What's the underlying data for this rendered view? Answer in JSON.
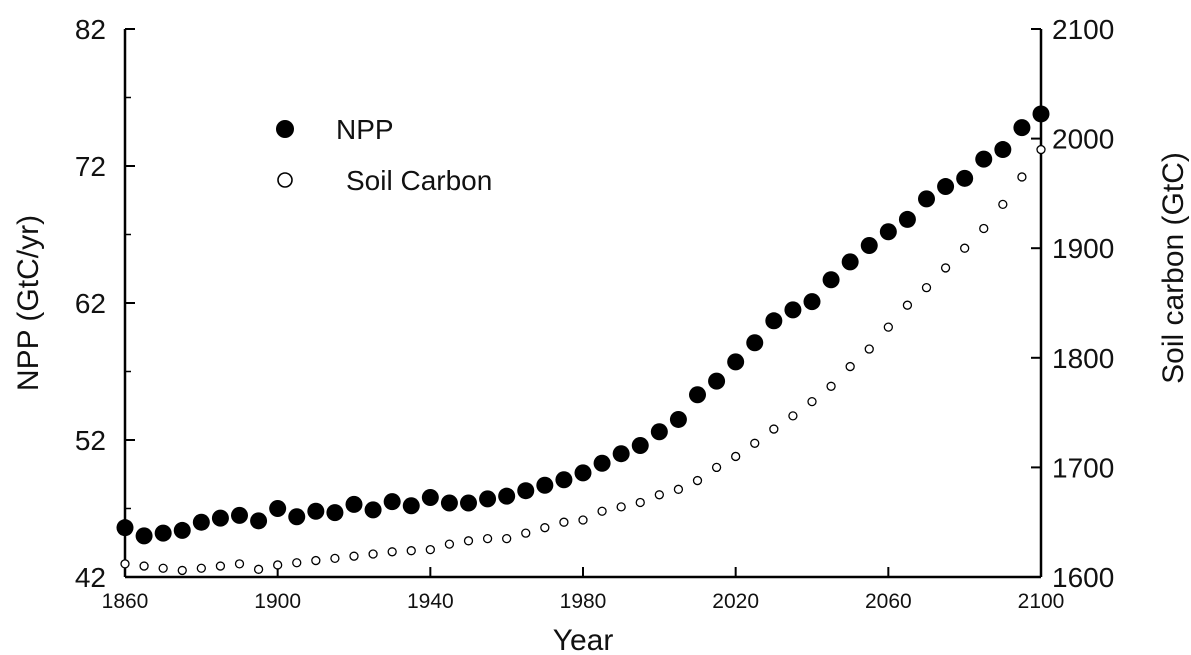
{
  "chart_data": {
    "type": "scatter",
    "title": "",
    "xlabel": "Year",
    "ylabel": "NPP (GtC/yr)",
    "ylabel_right": "Soil carbon (GtC)",
    "xlim": [
      1860,
      2100
    ],
    "ylim": [
      42,
      82
    ],
    "ylim_right": [
      1600,
      2100
    ],
    "x_ticks": [
      1860,
      1900,
      1940,
      1980,
      2020,
      2060,
      2100
    ],
    "y_ticks": [
      42,
      52,
      62,
      72,
      82
    ],
    "y_ticks_right": [
      1600,
      1700,
      1800,
      1900,
      2000,
      2100
    ],
    "grid": false,
    "legend_position": "top-left",
    "series": [
      {
        "name": "NPP",
        "axis": "left",
        "marker": "filled-circle",
        "color": "#000000",
        "x": [
          1860,
          1865,
          1870,
          1875,
          1880,
          1885,
          1890,
          1895,
          1900,
          1905,
          1910,
          1915,
          1920,
          1925,
          1930,
          1935,
          1940,
          1945,
          1950,
          1955,
          1960,
          1965,
          1970,
          1975,
          1980,
          1985,
          1990,
          1995,
          2000,
          2005,
          2010,
          2015,
          2020,
          2025,
          2030,
          2035,
          2040,
          2045,
          2050,
          2055,
          2060,
          2065,
          2070,
          2075,
          2080,
          2085,
          2090,
          2095,
          2100
        ],
        "values": [
          45.6,
          45.0,
          45.2,
          45.4,
          46.0,
          46.3,
          46.5,
          46.1,
          47.0,
          46.4,
          46.8,
          46.7,
          47.3,
          46.9,
          47.5,
          47.2,
          47.8,
          47.4,
          47.4,
          47.7,
          47.9,
          48.3,
          48.7,
          49.1,
          49.6,
          50.3,
          51.0,
          51.6,
          52.6,
          53.5,
          55.3,
          56.3,
          57.7,
          59.1,
          60.7,
          61.5,
          62.1,
          63.7,
          65.0,
          66.2,
          67.2,
          68.1,
          69.6,
          70.5,
          71.1,
          72.5,
          73.2,
          74.8,
          75.8
        ]
      },
      {
        "name": "Soil Carbon",
        "axis": "right",
        "marker": "open-circle",
        "color": "#000000",
        "x": [
          1860,
          1865,
          1870,
          1875,
          1880,
          1885,
          1890,
          1895,
          1900,
          1905,
          1910,
          1915,
          1920,
          1925,
          1930,
          1935,
          1940,
          1945,
          1950,
          1955,
          1960,
          1965,
          1970,
          1975,
          1980,
          1985,
          1990,
          1995,
          2000,
          2005,
          2010,
          2015,
          2020,
          2025,
          2030,
          2035,
          2040,
          2045,
          2050,
          2055,
          2060,
          2065,
          2070,
          2075,
          2080,
          2085,
          2090,
          2095,
          2100
        ],
        "values": [
          1612,
          1610,
          1608,
          1606,
          1608,
          1610,
          1612,
          1607,
          1611,
          1613,
          1615,
          1617,
          1619,
          1621,
          1623,
          1624,
          1625,
          1630,
          1633,
          1635,
          1635,
          1640,
          1645,
          1650,
          1652,
          1660,
          1664,
          1668,
          1675,
          1680,
          1688,
          1700,
          1710,
          1722,
          1735,
          1747,
          1760,
          1774,
          1792,
          1808,
          1828,
          1848,
          1864,
          1882,
          1900,
          1918,
          1940,
          1965,
          1990
        ]
      }
    ]
  }
}
